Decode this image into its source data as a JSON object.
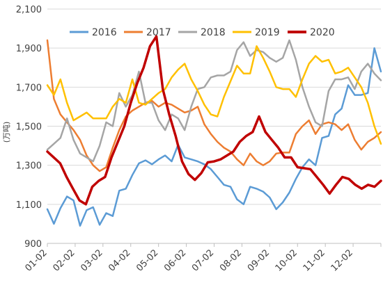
{
  "chart_data": {
    "type": "line",
    "ylabel": "(万吨)",
    "ylim": [
      900,
      2100
    ],
    "y_ticks": [
      "900",
      "1,100",
      "1,300",
      "1,500",
      "1,700",
      "1,900",
      "2,100"
    ],
    "x_ticks": [
      "01-02",
      "02-02",
      "03-02",
      "04-02",
      "05-02",
      "06-02",
      "07-02",
      "08-02",
      "09-02",
      "10-02",
      "11-02",
      "12-02"
    ],
    "grid": true,
    "legend_position": "top",
    "series": [
      {
        "name": "2016",
        "color": "#5b9bd5",
        "width": 2.5,
        "values": [
          1075,
          1000,
          1080,
          1140,
          1120,
          990,
          1070,
          1085,
          995,
          1055,
          1040,
          1170,
          1180,
          1250,
          1310,
          1325,
          1305,
          1330,
          1350,
          1320,
          1405,
          1340,
          1330,
          1320,
          1305,
          1280,
          1240,
          1200,
          1190,
          1125,
          1100,
          1190,
          1180,
          1165,
          1135,
          1075,
          1110,
          1160,
          1230,
          1290,
          1330,
          1300,
          1440,
          1450,
          1560,
          1590,
          1710,
          1660,
          1660,
          1670,
          1900,
          1780
        ]
      },
      {
        "name": "2017",
        "color": "#ed7d31",
        "width": 2.5,
        "values": [
          1940,
          1640,
          1560,
          1520,
          1480,
          1430,
          1350,
          1300,
          1270,
          1290,
          1390,
          1480,
          1550,
          1580,
          1600,
          1620,
          1630,
          1600,
          1620,
          1610,
          1590,
          1570,
          1580,
          1600,
          1510,
          1460,
          1420,
          1390,
          1370,
          1330,
          1300,
          1360,
          1320,
          1300,
          1320,
          1360,
          1365,
          1365,
          1460,
          1500,
          1530,
          1460,
          1510,
          1520,
          1510,
          1480,
          1510,
          1430,
          1380,
          1420,
          1440,
          1470
        ]
      },
      {
        "name": "2018",
        "color": "#a5a5a5",
        "width": 2.5,
        "values": [
          1380,
          1410,
          1440,
          1540,
          1430,
          1360,
          1340,
          1320,
          1400,
          1520,
          1500,
          1670,
          1600,
          1660,
          1780,
          1620,
          1620,
          1530,
          1480,
          1560,
          1540,
          1480,
          1600,
          1690,
          1700,
          1750,
          1760,
          1760,
          1780,
          1890,
          1930,
          1860,
          1890,
          1880,
          1850,
          1830,
          1850,
          1940,
          1840,
          1700,
          1600,
          1520,
          1500,
          1680,
          1740,
          1740,
          1750,
          1690,
          1780,
          1820,
          1770,
          1735
        ]
      },
      {
        "name": "2019",
        "color": "#ffc000",
        "width": 2.5,
        "values": [
          1710,
          1660,
          1740,
          1620,
          1530,
          1550,
          1570,
          1540,
          1540,
          1540,
          1600,
          1640,
          1620,
          1740,
          1620,
          1610,
          1640,
          1670,
          1690,
          1750,
          1790,
          1820,
          1740,
          1680,
          1610,
          1560,
          1550,
          1650,
          1730,
          1810,
          1770,
          1770,
          1910,
          1850,
          1780,
          1700,
          1690,
          1690,
          1650,
          1740,
          1820,
          1860,
          1830,
          1840,
          1770,
          1780,
          1800,
          1750,
          1700,
          1620,
          1500,
          1410
        ]
      },
      {
        "name": "2020",
        "color": "#c00000",
        "width": 3.5,
        "values": [
          1370,
          1340,
          1310,
          1240,
          1180,
          1120,
          1100,
          1190,
          1220,
          1240,
          1340,
          1420,
          1500,
          1620,
          1720,
          1800,
          1910,
          1960,
          1690,
          1560,
          1450,
          1320,
          1255,
          1225,
          1260,
          1315,
          1320,
          1330,
          1350,
          1370,
          1420,
          1450,
          1470,
          1550,
          1470,
          1430,
          1390,
          1340,
          1340,
          1290,
          1285,
          1280,
          1240,
          1200,
          1155,
          1200,
          1240,
          1230,
          1200,
          1180,
          1200,
          1190,
          1220
        ]
      }
    ]
  }
}
